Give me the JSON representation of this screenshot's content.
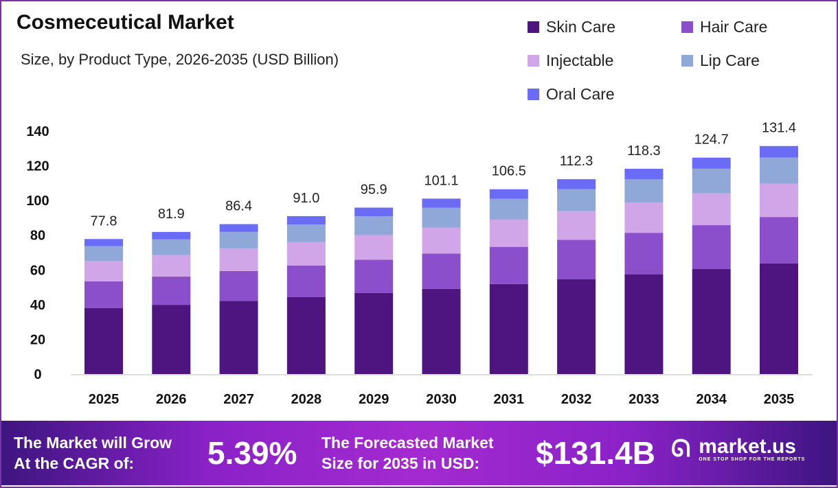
{
  "chart_data": {
    "type": "bar",
    "stacked": true,
    "title": "Cosmeceutical Market",
    "subtitle": "Size, by Product Type, 2026-2035 (USD Billion)",
    "categories": [
      "2025",
      "2026",
      "2027",
      "2028",
      "2029",
      "2030",
      "2031",
      "2032",
      "2033",
      "2034",
      "2035"
    ],
    "totals": [
      "77.8",
      "81.9",
      "86.4",
      "91.0",
      "95.9",
      "101.1",
      "106.5",
      "112.3",
      "118.3",
      "124.7",
      "131.4"
    ],
    "series": [
      {
        "name": "Skin Care",
        "color": "#4e1580",
        "values": [
          38.0,
          39.9,
          42.2,
          44.3,
          46.7,
          49.1,
          51.9,
          54.7,
          57.5,
          60.5,
          63.8
        ]
      },
      {
        "name": "Hair Care",
        "color": "#8b4fcc",
        "values": [
          15.4,
          16.3,
          17.2,
          18.2,
          19.2,
          20.3,
          21.4,
          22.6,
          23.9,
          25.3,
          26.7
        ]
      },
      {
        "name": "Injectable",
        "color": "#d1a6e8",
        "values": [
          11.7,
          12.3,
          12.9,
          13.5,
          14.2,
          15.0,
          15.7,
          16.5,
          17.4,
          18.3,
          19.2
        ]
      },
      {
        "name": "Lip Care",
        "color": "#8fa8d8",
        "values": [
          8.6,
          9.1,
          9.6,
          10.2,
          10.8,
          11.4,
          12.0,
          12.7,
          13.4,
          14.2,
          15.0
        ]
      },
      {
        "name": "Oral Care",
        "color": "#6b6cf5",
        "values": [
          4.1,
          4.3,
          4.5,
          4.8,
          5.0,
          5.3,
          5.5,
          5.8,
          6.1,
          6.4,
          6.7
        ]
      }
    ],
    "yticks": [
      "0",
      "20",
      "40",
      "60",
      "80",
      "100",
      "120",
      "140"
    ],
    "ylim": [
      0,
      140
    ],
    "grid": false,
    "legend": "top-right"
  },
  "banner": {
    "cagr_label_1": "The Market will Grow",
    "cagr_label_2": "At the CAGR of:",
    "cagr_value": "5.39%",
    "forecast_label_1": "The Forecasted Market",
    "forecast_label_2": "Size for 2035 in USD:",
    "forecast_value": "$131.4B",
    "brand": "market.us",
    "tagline": "ONE STOP SHOP FOR THE REPORTS"
  }
}
